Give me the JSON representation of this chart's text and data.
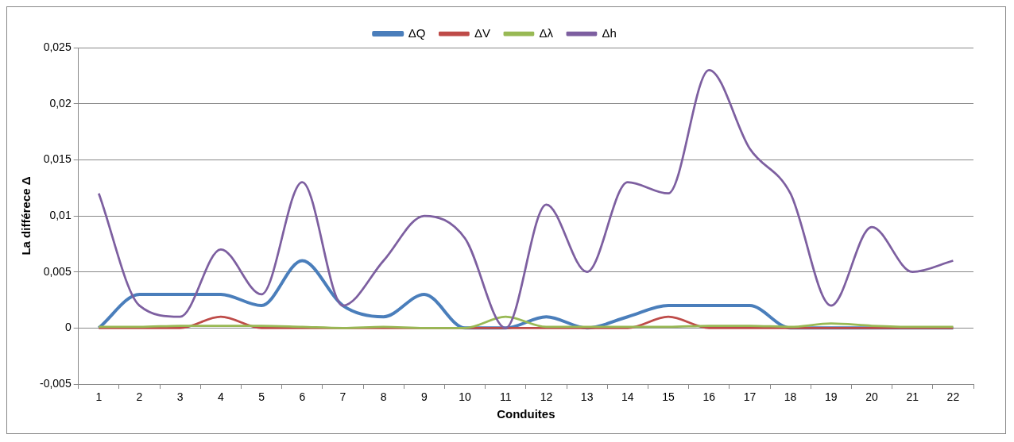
{
  "chart_data": {
    "type": "line",
    "xlabel": "Conduites",
    "ylabel": "La différece Δ",
    "categories": [
      "1",
      "2",
      "3",
      "4",
      "5",
      "6",
      "7",
      "8",
      "9",
      "10",
      "11",
      "12",
      "13",
      "14",
      "15",
      "16",
      "17",
      "18",
      "19",
      "20",
      "21",
      "22"
    ],
    "series": [
      {
        "name": "ΔQ",
        "color": "#4a7ebb",
        "values": [
          0,
          0.003,
          0.003,
          0.003,
          0.002,
          0.006,
          0.002,
          0.001,
          0.003,
          0,
          0,
          0.001,
          0,
          0.001,
          0.002,
          0.002,
          0.002,
          0,
          0,
          0,
          0,
          0
        ]
      },
      {
        "name": "ΔV",
        "color": "#be4b48",
        "values": [
          0,
          0,
          0,
          0.001,
          0,
          0,
          0,
          0,
          0,
          0,
          0,
          0,
          0,
          0,
          0.001,
          0,
          0,
          0,
          0,
          0,
          0,
          0
        ]
      },
      {
        "name": "Δλ",
        "color": "#98b954",
        "values": [
          0.0001,
          0.0001,
          0.0002,
          0.0002,
          0.0002,
          0.0001,
          0,
          0.0001,
          0,
          0,
          0.001,
          0.0001,
          0.0001,
          0.0001,
          0.0001,
          0.0002,
          0.0002,
          0.0001,
          0.0004,
          0.0002,
          0.0001,
          0.0001
        ]
      },
      {
        "name": "Δh",
        "color": "#7d5fa0",
        "values": [
          0.012,
          0.002,
          0.001,
          0.007,
          0.003,
          0.013,
          0.002,
          0.006,
          0.01,
          0.008,
          0,
          0.011,
          0.005,
          0.013,
          0.012,
          0.023,
          0.016,
          0.012,
          0.002,
          0.009,
          0.005,
          0.006
        ]
      }
    ],
    "ylim": [
      -0.005,
      0.025
    ],
    "yticks": [
      {
        "value": -0.005,
        "label": "-0,005"
      },
      {
        "value": 0,
        "label": "0"
      },
      {
        "value": 0.005,
        "label": "0,005"
      },
      {
        "value": 0.01,
        "label": "0,01"
      },
      {
        "value": 0.015,
        "label": "0,015"
      },
      {
        "value": 0.02,
        "label": "0,02"
      },
      {
        "value": 0.025,
        "label": "0,025"
      }
    ],
    "grid": "y",
    "legend": "top",
    "marker": "none",
    "line_style": "solid"
  }
}
